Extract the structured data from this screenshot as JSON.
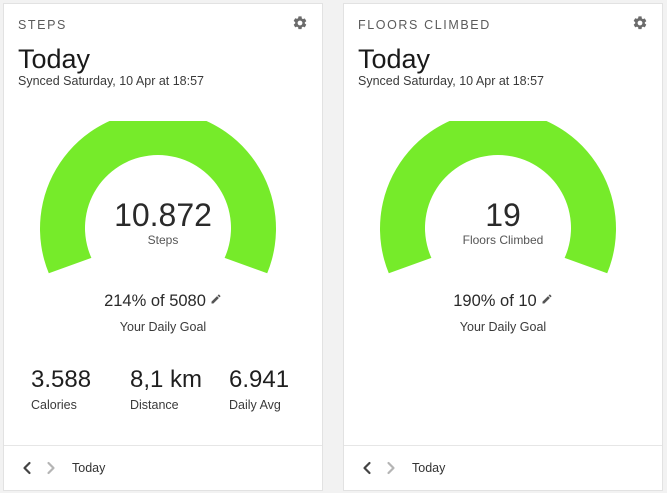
{
  "colors": {
    "gauge_fill": "#76eb2a",
    "background": "#f2f2f2",
    "card": "#ffffff"
  },
  "cards": {
    "steps": {
      "header": "STEPS",
      "title": "Today",
      "synced": "Synced Saturday, 10 Apr at 18:57",
      "gauge_value": "10.872",
      "gauge_label": "Steps",
      "gauge_fill_fraction": 1.0,
      "goal_text": "214% of 5080",
      "goal_label": "Your Daily Goal",
      "stats": [
        {
          "value": "3.588",
          "label": "Calories"
        },
        {
          "value": "8,1 km",
          "label": "Distance"
        },
        {
          "value": "6.941",
          "label": "Daily Avg"
        }
      ],
      "footer_label": "Today"
    },
    "floors": {
      "header": "FLOORS CLIMBED",
      "title": "Today",
      "synced": "Synced Saturday, 10 Apr at 18:57",
      "gauge_value": "19",
      "gauge_label": "Floors Climbed",
      "gauge_fill_fraction": 1.0,
      "goal_text": "190% of 10",
      "goal_label": "Your Daily Goal",
      "footer_label": "Today"
    }
  },
  "icons": {
    "settings": "gear-icon",
    "edit_goal": "pencil-icon",
    "previous": "chevron-left-icon",
    "next": "chevron-right-icon"
  }
}
